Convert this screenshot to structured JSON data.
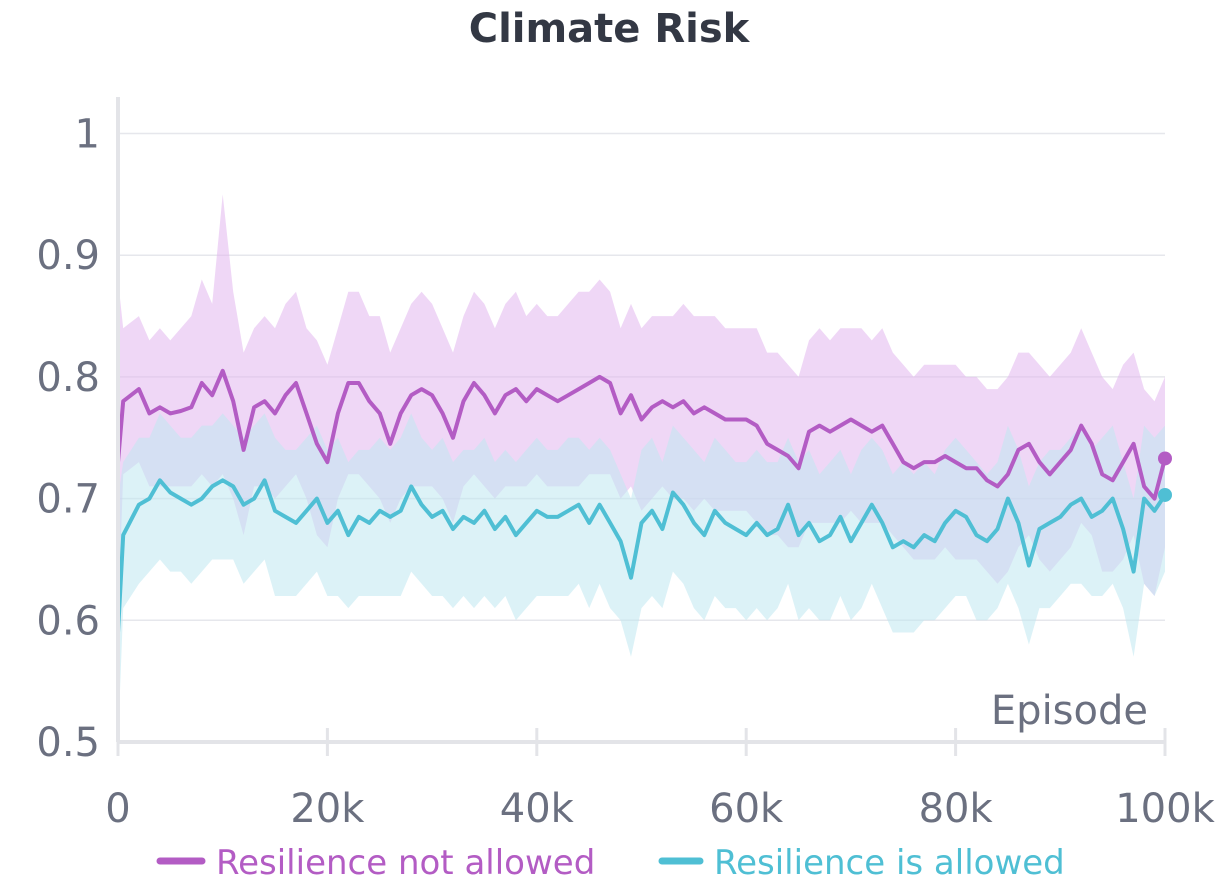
{
  "chart_data": {
    "type": "line",
    "title": "Climate Risk",
    "xlabel": "Episode",
    "ylabel": "",
    "xlim": [
      0,
      100000
    ],
    "ylim": [
      0.5,
      1.03
    ],
    "x_ticks": [
      0,
      20000,
      40000,
      60000,
      80000,
      100000
    ],
    "x_tick_labels": [
      "0",
      "20k",
      "40k",
      "60k",
      "80k",
      "100k"
    ],
    "y_ticks": [
      0.5,
      0.6,
      0.7,
      0.8,
      0.9,
      1.0
    ],
    "y_tick_labels": [
      "0.5",
      "0.6",
      "0.7",
      "0.8",
      "0.9",
      "1"
    ],
    "grid": true,
    "legend_position": "bottom",
    "series": [
      {
        "name": "Resilience not allowed",
        "color": "#b35cc4",
        "band_color": "#e2b7ee",
        "x": [
          0,
          500,
          2000,
          3000,
          4000,
          5000,
          6000,
          7000,
          8000,
          9000,
          10000,
          11000,
          12000,
          13000,
          14000,
          15000,
          16000,
          17000,
          18000,
          19000,
          20000,
          21000,
          22000,
          23000,
          24000,
          25000,
          26000,
          27000,
          28000,
          29000,
          30000,
          31000,
          32000,
          33000,
          34000,
          35000,
          36000,
          37000,
          38000,
          39000,
          40000,
          41000,
          42000,
          43000,
          44000,
          45000,
          46000,
          47000,
          48000,
          49000,
          50000,
          51000,
          52000,
          53000,
          54000,
          55000,
          56000,
          57000,
          58000,
          59000,
          60000,
          61000,
          62000,
          63000,
          64000,
          65000,
          66000,
          67000,
          68000,
          69000,
          70000,
          71000,
          72000,
          73000,
          74000,
          75000,
          76000,
          77000,
          78000,
          79000,
          80000,
          81000,
          82000,
          83000,
          84000,
          85000,
          86000,
          87000,
          88000,
          89000,
          90000,
          91000,
          92000,
          93000,
          94000,
          95000,
          96000,
          97000,
          98000,
          99000,
          100000
        ],
        "values": [
          0.73,
          0.78,
          0.79,
          0.77,
          0.775,
          0.77,
          0.772,
          0.775,
          0.795,
          0.785,
          0.805,
          0.78,
          0.74,
          0.775,
          0.78,
          0.77,
          0.785,
          0.795,
          0.77,
          0.745,
          0.73,
          0.77,
          0.795,
          0.795,
          0.78,
          0.77,
          0.745,
          0.77,
          0.785,
          0.79,
          0.785,
          0.77,
          0.75,
          0.78,
          0.795,
          0.785,
          0.77,
          0.785,
          0.79,
          0.78,
          0.79,
          0.785,
          0.78,
          0.785,
          0.79,
          0.795,
          0.8,
          0.795,
          0.77,
          0.785,
          0.765,
          0.775,
          0.78,
          0.775,
          0.78,
          0.77,
          0.775,
          0.77,
          0.765,
          0.765,
          0.765,
          0.76,
          0.745,
          0.74,
          0.735,
          0.725,
          0.755,
          0.76,
          0.755,
          0.76,
          0.765,
          0.76,
          0.755,
          0.76,
          0.745,
          0.73,
          0.725,
          0.73,
          0.73,
          0.735,
          0.73,
          0.725,
          0.725,
          0.715,
          0.71,
          0.72,
          0.74,
          0.745,
          0.73,
          0.72,
          0.73,
          0.74,
          0.76,
          0.745,
          0.72,
          0.715,
          0.73,
          0.745,
          0.71,
          0.7,
          0.733
        ],
        "upper": [
          0.88,
          0.84,
          0.85,
          0.83,
          0.84,
          0.83,
          0.84,
          0.85,
          0.88,
          0.86,
          0.95,
          0.87,
          0.82,
          0.84,
          0.85,
          0.84,
          0.86,
          0.87,
          0.84,
          0.83,
          0.81,
          0.84,
          0.87,
          0.87,
          0.85,
          0.85,
          0.82,
          0.84,
          0.86,
          0.87,
          0.86,
          0.84,
          0.82,
          0.85,
          0.87,
          0.86,
          0.84,
          0.86,
          0.87,
          0.85,
          0.86,
          0.85,
          0.85,
          0.86,
          0.87,
          0.87,
          0.88,
          0.87,
          0.84,
          0.86,
          0.84,
          0.85,
          0.85,
          0.85,
          0.86,
          0.85,
          0.85,
          0.85,
          0.84,
          0.84,
          0.84,
          0.84,
          0.82,
          0.82,
          0.81,
          0.8,
          0.83,
          0.84,
          0.83,
          0.84,
          0.84,
          0.84,
          0.83,
          0.84,
          0.82,
          0.81,
          0.8,
          0.81,
          0.81,
          0.81,
          0.81,
          0.8,
          0.8,
          0.79,
          0.79,
          0.8,
          0.82,
          0.82,
          0.81,
          0.8,
          0.81,
          0.82,
          0.84,
          0.82,
          0.8,
          0.79,
          0.81,
          0.82,
          0.79,
          0.78,
          0.8
        ],
        "lower": [
          0.6,
          0.72,
          0.73,
          0.71,
          0.71,
          0.71,
          0.71,
          0.71,
          0.72,
          0.71,
          0.72,
          0.7,
          0.67,
          0.71,
          0.71,
          0.7,
          0.71,
          0.72,
          0.7,
          0.67,
          0.66,
          0.7,
          0.72,
          0.72,
          0.71,
          0.7,
          0.68,
          0.7,
          0.71,
          0.71,
          0.71,
          0.7,
          0.68,
          0.71,
          0.72,
          0.71,
          0.7,
          0.71,
          0.71,
          0.71,
          0.72,
          0.71,
          0.71,
          0.71,
          0.71,
          0.72,
          0.72,
          0.72,
          0.7,
          0.71,
          0.69,
          0.7,
          0.71,
          0.7,
          0.7,
          0.69,
          0.7,
          0.69,
          0.69,
          0.69,
          0.69,
          0.68,
          0.67,
          0.67,
          0.66,
          0.66,
          0.68,
          0.68,
          0.68,
          0.68,
          0.69,
          0.68,
          0.68,
          0.68,
          0.67,
          0.66,
          0.65,
          0.65,
          0.65,
          0.66,
          0.65,
          0.65,
          0.65,
          0.64,
          0.63,
          0.64,
          0.66,
          0.67,
          0.65,
          0.64,
          0.65,
          0.66,
          0.68,
          0.67,
          0.64,
          0.64,
          0.65,
          0.67,
          0.63,
          0.62,
          0.66
        ]
      },
      {
        "name": "Resilience is allowed",
        "color": "#4fbfd4",
        "band_color": "#bfe7f0",
        "x": [
          0,
          500,
          2000,
          3000,
          4000,
          5000,
          6000,
          7000,
          8000,
          9000,
          10000,
          11000,
          12000,
          13000,
          14000,
          15000,
          16000,
          17000,
          18000,
          19000,
          20000,
          21000,
          22000,
          23000,
          24000,
          25000,
          26000,
          27000,
          28000,
          29000,
          30000,
          31000,
          32000,
          33000,
          34000,
          35000,
          36000,
          37000,
          38000,
          39000,
          40000,
          41000,
          42000,
          43000,
          44000,
          45000,
          46000,
          47000,
          48000,
          49000,
          50000,
          51000,
          52000,
          53000,
          54000,
          55000,
          56000,
          57000,
          58000,
          59000,
          60000,
          61000,
          62000,
          63000,
          64000,
          65000,
          66000,
          67000,
          68000,
          69000,
          70000,
          71000,
          72000,
          73000,
          74000,
          75000,
          76000,
          77000,
          78000,
          79000,
          80000,
          81000,
          82000,
          83000,
          84000,
          85000,
          86000,
          87000,
          88000,
          89000,
          90000,
          91000,
          92000,
          93000,
          94000,
          95000,
          96000,
          97000,
          98000,
          99000,
          100000
        ],
        "values": [
          0.59,
          0.67,
          0.695,
          0.7,
          0.715,
          0.705,
          0.7,
          0.695,
          0.7,
          0.71,
          0.715,
          0.71,
          0.695,
          0.7,
          0.715,
          0.69,
          0.685,
          0.68,
          0.69,
          0.7,
          0.68,
          0.69,
          0.67,
          0.685,
          0.68,
          0.69,
          0.685,
          0.69,
          0.71,
          0.695,
          0.685,
          0.69,
          0.675,
          0.685,
          0.68,
          0.69,
          0.675,
          0.685,
          0.67,
          0.68,
          0.69,
          0.685,
          0.685,
          0.69,
          0.695,
          0.68,
          0.695,
          0.68,
          0.665,
          0.635,
          0.68,
          0.69,
          0.675,
          0.705,
          0.695,
          0.68,
          0.67,
          0.69,
          0.68,
          0.675,
          0.67,
          0.68,
          0.67,
          0.675,
          0.695,
          0.67,
          0.68,
          0.665,
          0.67,
          0.685,
          0.665,
          0.68,
          0.695,
          0.68,
          0.66,
          0.665,
          0.66,
          0.67,
          0.665,
          0.68,
          0.69,
          0.685,
          0.67,
          0.665,
          0.675,
          0.7,
          0.68,
          0.645,
          0.675,
          0.68,
          0.685,
          0.695,
          0.7,
          0.685,
          0.69,
          0.7,
          0.675,
          0.64,
          0.7,
          0.69,
          0.703
        ],
        "upper": [
          0.7,
          0.73,
          0.75,
          0.75,
          0.77,
          0.76,
          0.75,
          0.75,
          0.76,
          0.76,
          0.77,
          0.76,
          0.75,
          0.76,
          0.77,
          0.75,
          0.74,
          0.74,
          0.75,
          0.76,
          0.74,
          0.75,
          0.73,
          0.74,
          0.74,
          0.75,
          0.74,
          0.75,
          0.77,
          0.75,
          0.74,
          0.75,
          0.73,
          0.74,
          0.74,
          0.75,
          0.73,
          0.74,
          0.73,
          0.74,
          0.75,
          0.74,
          0.74,
          0.75,
          0.75,
          0.74,
          0.75,
          0.74,
          0.72,
          0.7,
          0.74,
          0.75,
          0.73,
          0.76,
          0.75,
          0.74,
          0.73,
          0.75,
          0.74,
          0.73,
          0.73,
          0.74,
          0.73,
          0.73,
          0.75,
          0.73,
          0.74,
          0.72,
          0.73,
          0.74,
          0.72,
          0.74,
          0.75,
          0.74,
          0.72,
          0.73,
          0.72,
          0.73,
          0.72,
          0.74,
          0.75,
          0.74,
          0.73,
          0.72,
          0.73,
          0.76,
          0.74,
          0.71,
          0.73,
          0.74,
          0.74,
          0.75,
          0.76,
          0.74,
          0.75,
          0.76,
          0.73,
          0.7,
          0.76,
          0.75,
          0.76
        ],
        "lower": [
          0.5,
          0.61,
          0.63,
          0.64,
          0.65,
          0.64,
          0.64,
          0.63,
          0.64,
          0.65,
          0.65,
          0.65,
          0.63,
          0.64,
          0.65,
          0.62,
          0.62,
          0.62,
          0.63,
          0.64,
          0.62,
          0.62,
          0.61,
          0.62,
          0.62,
          0.62,
          0.62,
          0.62,
          0.64,
          0.63,
          0.62,
          0.62,
          0.61,
          0.62,
          0.61,
          0.62,
          0.61,
          0.62,
          0.6,
          0.61,
          0.62,
          0.62,
          0.62,
          0.62,
          0.63,
          0.61,
          0.63,
          0.61,
          0.6,
          0.57,
          0.61,
          0.62,
          0.61,
          0.64,
          0.63,
          0.61,
          0.6,
          0.62,
          0.61,
          0.61,
          0.6,
          0.61,
          0.6,
          0.61,
          0.63,
          0.6,
          0.61,
          0.6,
          0.6,
          0.62,
          0.6,
          0.61,
          0.63,
          0.61,
          0.59,
          0.59,
          0.59,
          0.6,
          0.6,
          0.61,
          0.62,
          0.62,
          0.6,
          0.6,
          0.61,
          0.63,
          0.61,
          0.58,
          0.61,
          0.61,
          0.62,
          0.63,
          0.63,
          0.62,
          0.62,
          0.63,
          0.61,
          0.57,
          0.63,
          0.62,
          0.64
        ]
      }
    ]
  }
}
